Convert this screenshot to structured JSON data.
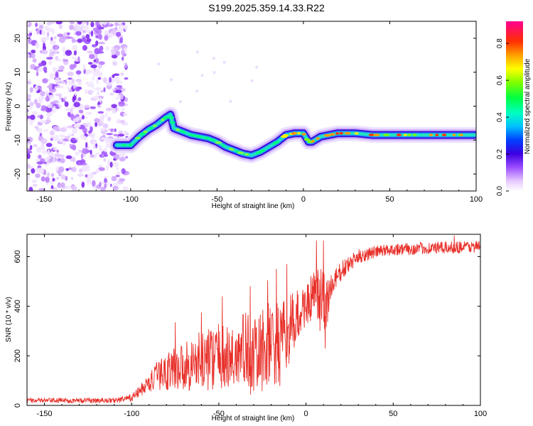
{
  "title": "S199.2025.359.14.33.R22",
  "chart_data": [
    {
      "type": "heatmap",
      "name": "spectrogram",
      "xlabel": "Height of straight line (km)",
      "ylabel": "Frequency (Hz)",
      "xlim": [
        -160,
        100
      ],
      "ylim": [
        -25,
        25
      ],
      "xticks": [
        "-150",
        "-100",
        "-50",
        "0",
        "50",
        "100"
      ],
      "xtick_values": [
        -150,
        -100,
        -50,
        0,
        50,
        100
      ],
      "yticks": [
        "-20",
        "-10",
        "0",
        "10",
        "20"
      ],
      "ytick_values": [
        -20,
        -10,
        0,
        10,
        20
      ],
      "noise_region_x": [
        -160,
        -102
      ],
      "ridge": [
        {
          "x": -108,
          "y": -11.5
        },
        {
          "x": -100,
          "y": -11.5
        },
        {
          "x": -95,
          "y": -9
        },
        {
          "x": -90,
          "y": -7
        },
        {
          "x": -85,
          "y": -5.5
        },
        {
          "x": -80,
          "y": -3.5
        },
        {
          "x": -77,
          "y": -2.5
        },
        {
          "x": -75,
          "y": -6.5
        },
        {
          "x": -70,
          "y": -7.5
        },
        {
          "x": -65,
          "y": -8.5
        },
        {
          "x": -60,
          "y": -9
        },
        {
          "x": -55,
          "y": -9.5
        },
        {
          "x": -50,
          "y": -10.5
        },
        {
          "x": -45,
          "y": -12
        },
        {
          "x": -40,
          "y": -13
        },
        {
          "x": -35,
          "y": -14
        },
        {
          "x": -30,
          "y": -14.5
        },
        {
          "x": -25,
          "y": -13.5
        },
        {
          "x": -20,
          "y": -12
        },
        {
          "x": -15,
          "y": -10.5
        },
        {
          "x": -10,
          "y": -8.5
        },
        {
          "x": -5,
          "y": -8
        },
        {
          "x": 0,
          "y": -8
        },
        {
          "x": 3,
          "y": -10.5
        },
        {
          "x": 5,
          "y": -10.5
        },
        {
          "x": 10,
          "y": -9
        },
        {
          "x": 15,
          "y": -8.5
        },
        {
          "x": 20,
          "y": -8
        },
        {
          "x": 30,
          "y": -8
        },
        {
          "x": 40,
          "y": -8.5
        },
        {
          "x": 50,
          "y": -8.5
        },
        {
          "x": 60,
          "y": -8.5
        },
        {
          "x": 70,
          "y": -8.5
        },
        {
          "x": 80,
          "y": -8.5
        },
        {
          "x": 90,
          "y": -8.5
        },
        {
          "x": 99,
          "y": -8.5
        }
      ],
      "colorbar": {
        "label": "Normalized spectral amplitude",
        "range": [
          0,
          0.92
        ],
        "ticks": [
          "0.0",
          "0.2",
          "0.4",
          "0.6",
          "0.8"
        ],
        "tick_values": [
          0,
          0.2,
          0.4,
          0.6,
          0.8
        ]
      }
    },
    {
      "type": "line",
      "name": "snr",
      "xlabel": "Height of straight line (km)",
      "ylabel": "SNR (10 * v/v)",
      "xlim": [
        -160,
        100
      ],
      "ylim": [
        0,
        690
      ],
      "xticks": [
        "-150",
        "-100",
        "-50",
        "0",
        "50",
        "100"
      ],
      "xtick_values": [
        -150,
        -100,
        -50,
        0,
        50,
        100
      ],
      "yticks": [
        "0",
        "200",
        "400",
        "600"
      ],
      "ytick_values": [
        0,
        200,
        400,
        600
      ],
      "color": "#e8302a",
      "envelope": {
        "x": [
          -160,
          -110,
          -100,
          -95,
          -90,
          -85,
          -80,
          -75,
          -70,
          -65,
          -60,
          -55,
          -50,
          -45,
          -40,
          -35,
          -30,
          -25,
          -20,
          -15,
          -10,
          -5,
          0,
          5,
          10,
          15,
          20,
          25,
          30,
          40,
          50,
          60,
          70,
          80,
          90,
          100
        ],
        "mean": [
          20,
          20,
          30,
          60,
          90,
          120,
          140,
          150,
          160,
          170,
          180,
          190,
          200,
          180,
          200,
          230,
          180,
          220,
          250,
          230,
          300,
          350,
          410,
          430,
          400,
          480,
          540,
          570,
          600,
          620,
          630,
          630,
          635,
          635,
          640,
          640
        ],
        "amp": [
          10,
          10,
          15,
          25,
          40,
          60,
          80,
          90,
          100,
          110,
          120,
          130,
          130,
          140,
          140,
          160,
          160,
          170,
          180,
          180,
          140,
          120,
          80,
          120,
          160,
          60,
          40,
          35,
          30,
          25,
          25,
          25,
          25,
          25,
          25,
          25
        ]
      },
      "spikes": [
        {
          "x": -75,
          "y": 335
        },
        {
          "x": -60,
          "y": 375
        },
        {
          "x": -48,
          "y": 440
        },
        {
          "x": -32,
          "y": 480
        },
        {
          "x": -22,
          "y": 505
        },
        {
          "x": -17,
          "y": 550
        },
        {
          "x": -11,
          "y": 570
        },
        {
          "x": 6,
          "y": 665
        },
        {
          "x": 10,
          "y": 665
        },
        {
          "x": 11,
          "y": 230
        },
        {
          "x": 85,
          "y": 685
        }
      ]
    }
  ]
}
